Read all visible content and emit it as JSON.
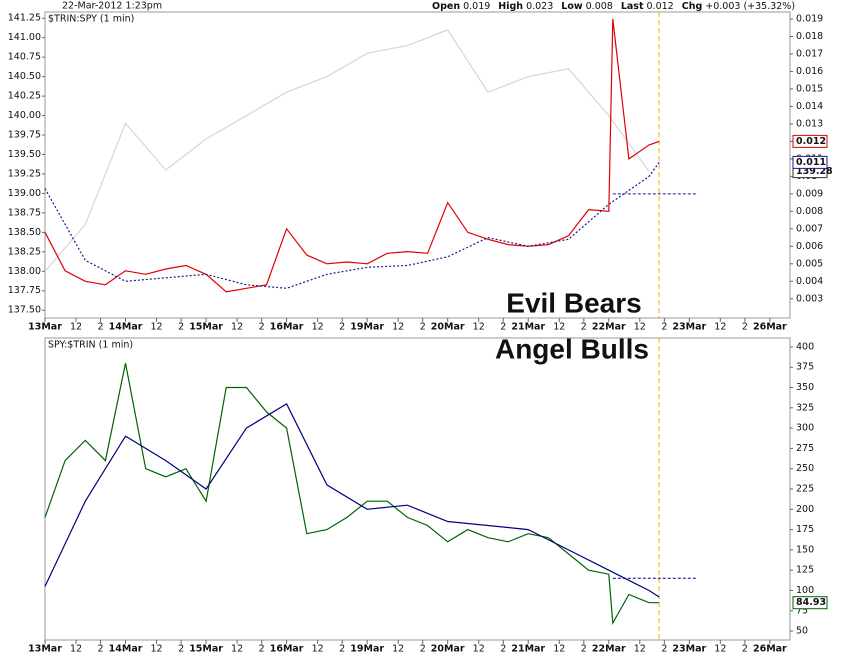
{
  "chart_data": [
    {
      "type": "line",
      "title": "22-Mar-2012 1:23pm",
      "quote": [
        {
          "label": "Open",
          "value": 0.019
        },
        {
          "label": "High",
          "value": 0.023
        },
        {
          "label": "Low",
          "value": 0.008
        },
        {
          "label": "Last",
          "value": 0.012
        },
        {
          "label": "Chg",
          "value": "+0.003 (+35.32%)"
        }
      ],
      "label": "$TRIN:SPY (1 min)",
      "annotation": "Evil Bears",
      "annotation_color": "#e00000",
      "yaxis_side": "left",
      "grid": false,
      "xlim": [
        0,
        9.25
      ],
      "xticks": [
        {
          "value": 0,
          "label": "13Mar"
        },
        {
          "value": 0.385,
          "label": "12"
        },
        {
          "value": 0.69,
          "label": "2"
        },
        {
          "value": 1,
          "label": "14Mar"
        },
        {
          "value": 1.385,
          "label": "12"
        },
        {
          "value": 1.69,
          "label": "2"
        },
        {
          "value": 2,
          "label": "15Mar"
        },
        {
          "value": 2.385,
          "label": "12"
        },
        {
          "value": 2.69,
          "label": "2"
        },
        {
          "value": 3,
          "label": "16Mar"
        },
        {
          "value": 3.385,
          "label": "12"
        },
        {
          "value": 3.69,
          "label": "2"
        },
        {
          "value": 4,
          "label": "19Mar"
        },
        {
          "value": 4.385,
          "label": "12"
        },
        {
          "value": 4.69,
          "label": "2"
        },
        {
          "value": 5,
          "label": "20Mar"
        },
        {
          "value": 5.385,
          "label": "12"
        },
        {
          "value": 5.69,
          "label": "2"
        },
        {
          "value": 6,
          "label": "21Mar"
        },
        {
          "value": 6.385,
          "label": "12"
        },
        {
          "value": 6.69,
          "label": "2"
        },
        {
          "value": 7,
          "label": "22Mar"
        },
        {
          "value": 7.385,
          "label": "12"
        },
        {
          "value": 7.69,
          "label": "2"
        },
        {
          "value": 8,
          "label": "23Mar"
        },
        {
          "value": 8.385,
          "label": "12"
        },
        {
          "value": 8.69,
          "label": "2"
        },
        {
          "value": 9,
          "label": "26Mar"
        }
      ],
      "ylim": [
        137.4,
        141.33
      ],
      "yticks": [
        {
          "value": 137.5,
          "label": "137.50"
        },
        137.75,
        {
          "value": 138,
          "label": "138.00"
        },
        138.25,
        {
          "value": 138.5,
          "label": "138.50"
        },
        138.75,
        {
          "value": 139,
          "label": "139.00"
        },
        139.25,
        {
          "value": 139.5,
          "label": "139.50"
        },
        139.75,
        {
          "value": 140,
          "label": "140.00"
        },
        140.25,
        {
          "value": 140.5,
          "label": "140.50"
        },
        140.75,
        {
          "value": 141,
          "label": "141.00"
        },
        141.25
      ],
      "y2lim": [
        0.0019,
        0.0194
      ],
      "y2ticks": [
        0.003,
        0.004,
        0.005,
        0.006,
        0.007,
        0.008,
        0.009,
        0.01,
        0.011,
        0.012,
        0.013,
        0.014,
        0.015,
        0.016,
        0.017,
        0.018,
        0.019
      ],
      "series": [
        {
          "color": "#d6d6d6",
          "axis": "y",
          "dash": false,
          "end_label": "139.28",
          "x": [
            0,
            0.5,
            1,
            1.5,
            2,
            2.5,
            3,
            3.5,
            4,
            4.5,
            5,
            5.5,
            6,
            6.5,
            7,
            7.5
          ],
          "values": [
            138,
            138.6,
            139.9,
            139.3,
            139.7,
            140,
            140.3,
            140.5,
            140.8,
            140.9,
            141.1,
            140.3,
            140.5,
            140.6,
            140,
            139.28
          ]
        },
        {
          "color": "#e00000",
          "axis": "y2",
          "dash": false,
          "end_label": "0.012",
          "x": [
            0,
            0.25,
            0.5,
            0.75,
            1,
            1.25,
            1.5,
            1.75,
            2,
            2.25,
            2.5,
            2.75,
            3,
            3.25,
            3.5,
            3.75,
            4,
            4.25,
            4.5,
            4.75,
            5,
            5.25,
            5.5,
            5.75,
            6,
            6.25,
            6.5,
            6.75,
            7,
            7.05,
            7.25,
            7.5,
            7.625
          ],
          "values": [
            0.0068,
            0.0046,
            0.004,
            0.0038,
            0.0046,
            0.0044,
            0.0047,
            0.0049,
            0.0044,
            0.0034,
            0.0036,
            0.0038,
            0.007,
            0.0055,
            0.005,
            0.0051,
            0.005,
            0.0056,
            0.0057,
            0.0056,
            0.0085,
            0.0068,
            0.0064,
            0.0061,
            0.006,
            0.0061,
            0.0066,
            0.0081,
            0.008,
            0.019,
            0.011,
            0.0118,
            0.012
          ]
        },
        {
          "color": "#1a1a8c",
          "axis": "y2",
          "dash": true,
          "end_label": "0.011",
          "x": [
            0,
            0.5,
            1,
            1.5,
            2,
            2.5,
            3,
            3.5,
            4,
            4.5,
            5,
            5.5,
            6,
            6.5,
            7,
            7.5,
            7.625
          ],
          "values": [
            0.0093,
            0.0052,
            0.004,
            0.0042,
            0.0044,
            0.0038,
            0.0036,
            0.0044,
            0.0048,
            0.0049,
            0.0054,
            0.0065,
            0.006,
            0.0064,
            0.0084,
            0.01,
            0.0108
          ]
        }
      ],
      "hline": {
        "value": 0.009,
        "axis": "y2",
        "x": [
          7.05,
          8.1
        ],
        "color": "#1a1a8c"
      },
      "cursor": {
        "x": 7.625,
        "color": "#f0b400"
      }
    },
    {
      "type": "line",
      "label": "SPY:$TRIN (1 min)",
      "annotation": "Angel Bulls",
      "annotation_color": "#1a7a1a",
      "yaxis_side": "right",
      "grid": false,
      "xlim": [
        0,
        9.25
      ],
      "xticks": [
        {
          "value": 0,
          "label": "13Mar"
        },
        {
          "value": 0.385,
          "label": "12"
        },
        {
          "value": 0.69,
          "label": "2"
        },
        {
          "value": 1,
          "label": "14Mar"
        },
        {
          "value": 1.385,
          "label": "12"
        },
        {
          "value": 1.69,
          "label": "2"
        },
        {
          "value": 2,
          "label": "15Mar"
        },
        {
          "value": 2.385,
          "label": "12"
        },
        {
          "value": 2.69,
          "label": "2"
        },
        {
          "value": 3,
          "label": "16Mar"
        },
        {
          "value": 3.385,
          "label": "12"
        },
        {
          "value": 3.69,
          "label": "2"
        },
        {
          "value": 4,
          "label": "19Mar"
        },
        {
          "value": 4.385,
          "label": "12"
        },
        {
          "value": 4.69,
          "label": "2"
        },
        {
          "value": 5,
          "label": "20Mar"
        },
        {
          "value": 5.385,
          "label": "12"
        },
        {
          "value": 5.69,
          "label": "2"
        },
        {
          "value": 6,
          "label": "21Mar"
        },
        {
          "value": 6.385,
          "label": "12"
        },
        {
          "value": 6.69,
          "label": "2"
        },
        {
          "value": 7,
          "label": "22Mar"
        },
        {
          "value": 7.385,
          "label": "12"
        },
        {
          "value": 7.69,
          "label": "2"
        },
        {
          "value": 8,
          "label": "23Mar"
        },
        {
          "value": 8.385,
          "label": "12"
        },
        {
          "value": 8.69,
          "label": "2"
        },
        {
          "value": 9,
          "label": "26Mar"
        }
      ],
      "ylim": [
        39,
        411
      ],
      "yticks": [
        50,
        75,
        100,
        125,
        150,
        175,
        200,
        225,
        250,
        275,
        300,
        325,
        350,
        375,
        400
      ],
      "series": [
        {
          "color": "#006400",
          "axis": "y",
          "dash": false,
          "end_label": "84.93",
          "x": [
            0,
            0.25,
            0.5,
            0.75,
            1,
            1.25,
            1.5,
            1.75,
            2,
            2.25,
            2.5,
            2.75,
            3,
            3.25,
            3.5,
            3.75,
            4,
            4.25,
            4.5,
            4.75,
            5,
            5.25,
            5.5,
            5.75,
            6,
            6.25,
            6.5,
            6.75,
            7,
            7.05,
            7.25,
            7.5,
            7.625
          ],
          "values": [
            190,
            260,
            285,
            260,
            380,
            250,
            240,
            250,
            210,
            350,
            350,
            320,
            300,
            170,
            175,
            190,
            210,
            210,
            190,
            180,
            160,
            175,
            165,
            160,
            170,
            165,
            145,
            125,
            120,
            60,
            95,
            85,
            84.93
          ]
        },
        {
          "color": "#000080",
          "axis": "y",
          "dash": false,
          "x": [
            0,
            0.5,
            1,
            1.5,
            2,
            2.5,
            3,
            3.5,
            4,
            4.5,
            5,
            5.5,
            6,
            6.5,
            7,
            7.5,
            7.625
          ],
          "values": [
            105,
            210,
            290,
            260,
            225,
            300,
            330,
            230,
            200,
            205,
            185,
            180,
            175,
            150,
            125,
            100,
            92
          ]
        }
      ],
      "hline": {
        "value": 115,
        "axis": "y",
        "x": [
          7.05,
          8.1
        ],
        "color": "#000080"
      },
      "cursor": {
        "x": 7.625,
        "color": "#f0b400"
      }
    }
  ]
}
